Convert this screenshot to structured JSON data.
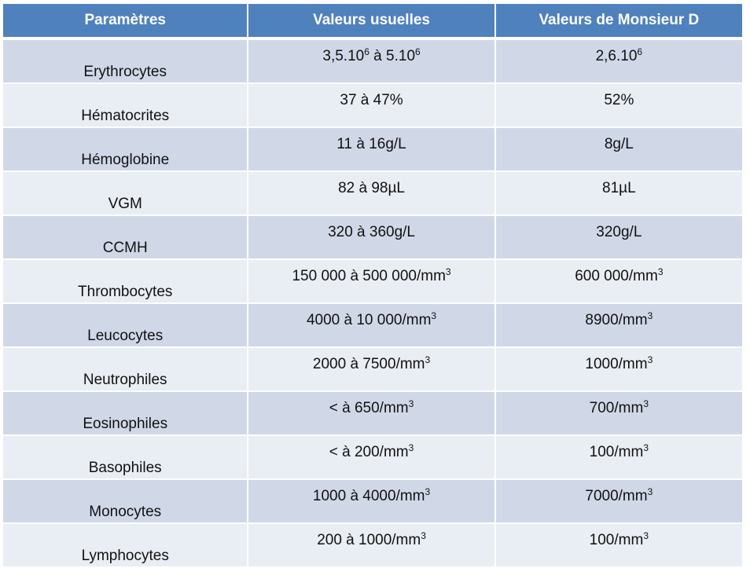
{
  "table": {
    "headers": [
      "Paramètres",
      "Valeurs usuelles",
      "Valeurs de Monsieur D"
    ],
    "header_bg": "#4f81bd",
    "row_bg_odd": "#d0d8e8",
    "row_bg_even": "#e9edf4",
    "rows": [
      {
        "param": "Erythrocytes",
        "usual": {
          "pre": "3,5.10",
          "sup": "6",
          "mid": " à 5.10",
          "sup2": "6"
        },
        "patient": {
          "pre": "2,6.10",
          "sup": "6"
        }
      },
      {
        "param": "Hématocrites",
        "usual": {
          "pre": "37 à 47%"
        },
        "patient": {
          "pre": "52%"
        }
      },
      {
        "param": "Hémoglobine",
        "usual": {
          "pre": "11 à 16g/L"
        },
        "patient": {
          "pre": "8g/L"
        }
      },
      {
        "param": "VGM",
        "usual": {
          "pre": "82 à 98µL"
        },
        "patient": {
          "pre": "81µL"
        }
      },
      {
        "param": "CCMH",
        "usual": {
          "pre": "320 à 360g/L"
        },
        "patient": {
          "pre": "320g/L"
        }
      },
      {
        "param": "Thrombocytes",
        "usual": {
          "pre": "150 000 à 500 000/mm",
          "sup": "3"
        },
        "patient": {
          "pre": "600 000/mm",
          "sup": "3"
        }
      },
      {
        "param": "Leucocytes",
        "usual": {
          "pre": "4000 à 10 000/mm",
          "sup": "3"
        },
        "patient": {
          "pre": "8900/mm",
          "sup": "3"
        }
      },
      {
        "param": "Neutrophiles",
        "usual": {
          "pre": "2000 à 7500/mm",
          "sup": "3"
        },
        "patient": {
          "pre": "1000/mm",
          "sup": "3"
        }
      },
      {
        "param": "Eosinophiles",
        "usual": {
          "pre": "< à 650/mm",
          "sup": "3"
        },
        "patient": {
          "pre": "700/mm",
          "sup": "3"
        }
      },
      {
        "param": "Basophiles",
        "usual": {
          "pre": "< à 200/mm",
          "sup": "3"
        },
        "patient": {
          "pre": "100/mm",
          "sup": "3"
        }
      },
      {
        "param": "Monocytes",
        "usual": {
          "pre": "1000 à 4000/mm",
          "sup": "3"
        },
        "patient": {
          "pre": "7000/mm",
          "sup": "3"
        }
      },
      {
        "param": "Lymphocytes",
        "usual": {
          "pre": "200 à 1000/mm",
          "sup": "3"
        },
        "patient": {
          "pre": "100/mm",
          "sup": "3"
        }
      }
    ]
  }
}
